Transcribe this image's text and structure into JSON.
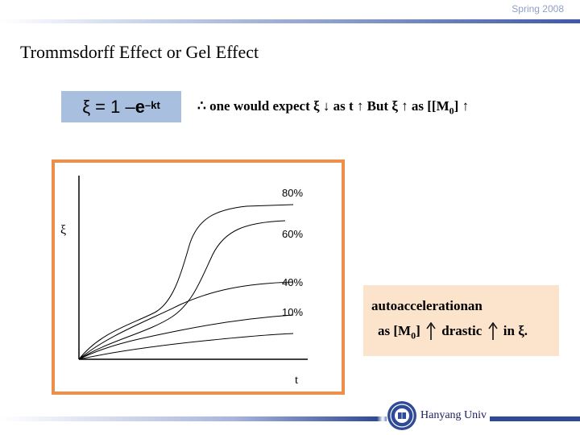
{
  "header": {
    "season": "Spring 2008"
  },
  "slide": {
    "title": "Trommsdorff Effect or Gel Effect",
    "formula": {
      "lhs": "ξ = 1 – ",
      "base": "e",
      "exponent": "–kt"
    },
    "expectation": {
      "therefore": "∴",
      "text1": "one would expect ξ",
      "down_arrow": "↓",
      "text2": "as t",
      "up_arrow1": "↑",
      "text3": "But ξ",
      "up_arrow2": "↑",
      "text4": "as [[M",
      "sub": "0",
      "text5": "]",
      "up_arrow3": "↑"
    },
    "note": {
      "line1": "autoaccelerationan",
      "line2_a": "as [M",
      "line2_sub": "0",
      "line2_b": "]",
      "line2_c": "drastic",
      "line2_d": "in ξ."
    }
  },
  "chart_data": {
    "type": "line",
    "title": "",
    "xlabel": "t",
    "ylabel": "ξ",
    "series": [
      {
        "label": "80%",
        "shape": "sigmoid",
        "level": 0.8
      },
      {
        "label": "60%",
        "shape": "sigmoid",
        "level": 0.6
      },
      {
        "label": "40%",
        "shape": "saturating",
        "level": 0.4
      },
      {
        "label": "10%",
        "shape": "saturating",
        "level": 0.2
      },
      {
        "label": "",
        "shape": "saturating",
        "level": 0.1
      }
    ]
  },
  "footer": {
    "university": "Hanyang Univ"
  },
  "colors": {
    "frame": "#ec8f4a",
    "formula_bg": "#a9bfe0",
    "note_bg": "#fbe3cc",
    "accent": "#2f4a96"
  }
}
